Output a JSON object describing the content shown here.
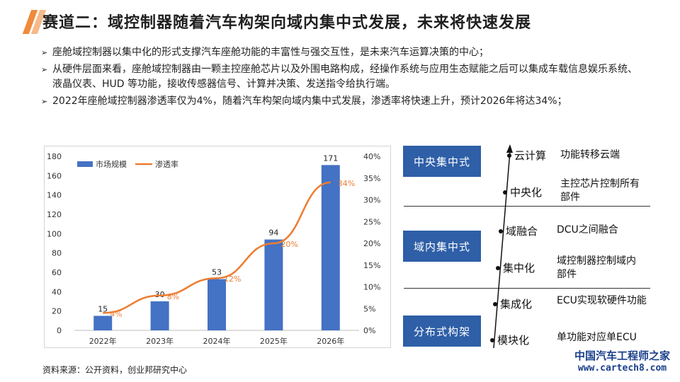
{
  "header": {
    "title": "赛道二：域控制器随着汽车构架向域内集中式发展，未来将快速发展"
  },
  "bullets": [
    "座舱域控制器以集中化的形式支撑汽车座舱功能的丰富性与强交互性，是未来汽车运算决策的中心；",
    "从硬件层面来看，座舱域控制器由一颗主控座舱芯片以及外围电路构成，经操作系统与应用生态赋能之后可以集成车载信息娱乐系统、液晶仪表、HUD 等功能，接收传感器信号、计算并决策、发送指令给执行端。",
    "2022年座舱域控制器渗透率仅为4%，随着汽车构架向域内集中式发展，渗透率将快速上升，预计2026年将达34%；"
  ],
  "chart_data": {
    "type": "bar",
    "categories": [
      "2022年",
      "2023年",
      "2024年",
      "2025年",
      "2026年"
    ],
    "series": [
      {
        "name": "市场规模",
        "type": "bar",
        "axis": "left",
        "values": [
          15,
          30,
          53,
          94,
          171
        ],
        "labels": [
          "15",
          "30",
          "53",
          "94",
          "171"
        ],
        "color": "#4472c4"
      },
      {
        "name": "渗透率",
        "type": "line",
        "axis": "right",
        "values": [
          4,
          8,
          12,
          20,
          34
        ],
        "labels": [
          "4%",
          "8%",
          "12%",
          "20%",
          "34%"
        ],
        "color": "#ed7d31"
      }
    ],
    "y_left": {
      "min": 0,
      "max": 180,
      "ticks": [
        "0",
        "20",
        "40",
        "60",
        "80",
        "100",
        "120",
        "140",
        "160",
        "180"
      ]
    },
    "y_right": {
      "min": 0,
      "max": 40,
      "ticks": [
        "0%",
        "5%",
        "10%",
        "15%",
        "20%",
        "25%",
        "30%",
        "35%",
        "40%"
      ]
    },
    "legend_position": "top-left",
    "grid": false
  },
  "diagram": {
    "phases": [
      "中央集中式",
      "域内集中式",
      "分布式构架"
    ],
    "stages": [
      {
        "name": "云计算",
        "desc": "功能转移云端"
      },
      {
        "name": "中央化",
        "desc": "主控芯片控制所有部件"
      },
      {
        "name": "域融合",
        "desc": "DCU之间融合"
      },
      {
        "name": "集中化",
        "desc": "域控制器控制域内部件"
      },
      {
        "name": "集成化",
        "desc": "ECU实现软硬件功能"
      },
      {
        "name": "模块化",
        "desc": "单功能对应单ECU"
      }
    ]
  },
  "source": "资料来源：公开资料，创业邦研究中心",
  "watermark": {
    "text": "中国汽车工程师之家",
    "url": "www.cartech8.com"
  },
  "colors": {
    "accent": "#f08a3c",
    "phase_box": "#2e5fa7"
  }
}
